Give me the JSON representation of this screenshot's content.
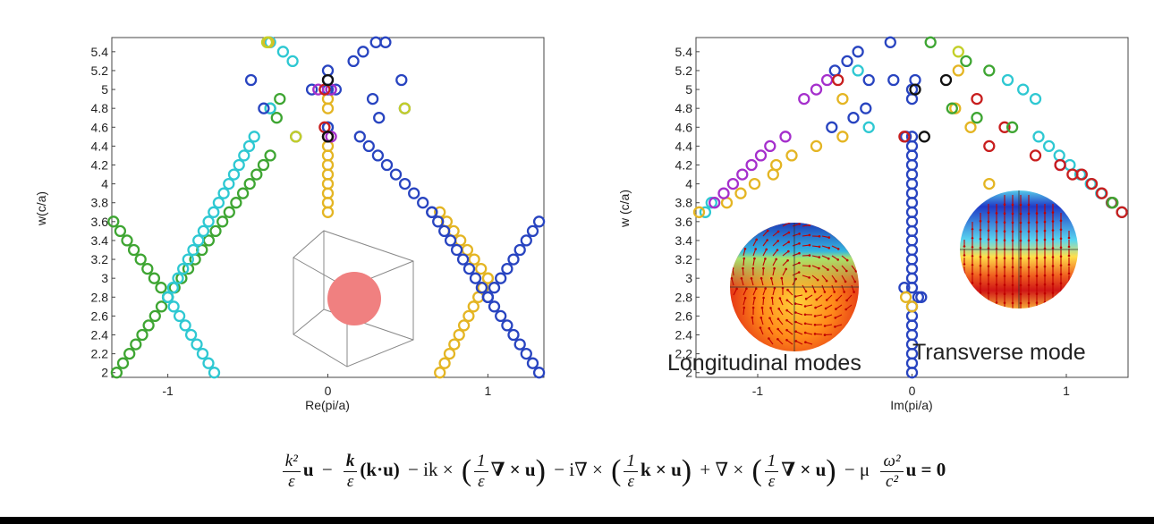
{
  "colors": {
    "green": "#3ea532",
    "cyan": "#2ec8d2",
    "gold": "#e4b523",
    "blue": "#2844c0",
    "purple": "#a52fcc",
    "red": "#c81e1e",
    "black": "#111111",
    "yellowgreen": "#c3cf28",
    "sphere": "#f08080",
    "cube": "#888888"
  },
  "chart_data": [
    {
      "type": "scatter",
      "id": "left",
      "xlabel": "Re(pi/a)",
      "ylabel": "w(c/a)",
      "xlim": [
        -1.35,
        1.35
      ],
      "ylim": [
        1.95,
        5.55
      ],
      "xticks": [
        -1,
        0,
        1
      ],
      "xtick_labels": [
        "-1",
        "0",
        "1"
      ],
      "yticks": [
        2,
        2.2,
        2.4,
        2.6,
        2.8,
        3,
        3.2,
        3.4,
        3.6,
        3.8,
        4,
        4.2,
        4.4,
        4.6,
        4.8,
        5,
        5.2,
        5.4
      ],
      "ytick_labels": [
        "2",
        "2.2",
        "2.4",
        "2.6",
        "2.8",
        "3",
        "3.2",
        "3.4",
        "3.6",
        "3.8",
        "4",
        "4.2",
        "4.4",
        "4.6",
        "4.8",
        "5",
        "5.2",
        "5.4"
      ],
      "series": [
        {
          "name": "green",
          "lines": [
            [
              -1.34,
              3.6,
              -1.0,
              2.8
            ],
            [
              -1.32,
              2.0,
              -1.0,
              2.8
            ],
            [
              -1.0,
              2.8,
              -0.36,
              4.3
            ]
          ],
          "step": 0.1,
          "points": [
            [
              -0.3,
              4.9
            ],
            [
              -0.32,
              4.7
            ],
            [
              -0.36,
              4.8
            ]
          ]
        },
        {
          "name": "cyan",
          "lines": [
            [
              -1.0,
              2.8,
              -0.71,
              2.0
            ],
            [
              -1.0,
              2.8,
              -0.46,
              4.5
            ]
          ],
          "step": 0.1,
          "points": [
            [
              -0.36,
              5.5
            ],
            [
              -0.28,
              5.4
            ],
            [
              -0.22,
              5.3
            ],
            [
              -0.36,
              4.8
            ],
            [
              0.0,
              4.6
            ]
          ]
        },
        {
          "name": "gold",
          "lines": [
            [
              0.0,
              3.7,
              0.0,
              4.5
            ],
            [
              0.7,
              3.7,
              1.0,
              3.0
            ],
            [
              0.7,
              2.0,
              1.0,
              3.0
            ]
          ],
          "step": 0.1,
          "points": [
            [
              -0.37,
              5.5
            ],
            [
              0.0,
              4.8
            ],
            [
              0.0,
              4.9
            ]
          ]
        },
        {
          "name": "blue",
          "lines": [
            [
              0.2,
              4.5,
              0.65,
              3.7
            ],
            [
              0.65,
              3.7,
              1.0,
              2.8
            ],
            [
              1.0,
              2.8,
              1.32,
              2.0
            ],
            [
              1.0,
              2.8,
              1.32,
              3.6
            ]
          ],
          "step": 0.1,
          "points": [
            [
              -0.48,
              5.1
            ],
            [
              -0.4,
              4.8
            ],
            [
              -0.2,
              4.5
            ],
            [
              -0.1,
              5.0
            ],
            [
              0.0,
              5.0
            ],
            [
              0.0,
              5.1
            ],
            [
              0.0,
              5.2
            ],
            [
              0.02,
              5.0
            ],
            [
              0.05,
              5.0
            ],
            [
              0.16,
              5.3
            ],
            [
              0.22,
              5.4
            ],
            [
              0.3,
              5.5
            ],
            [
              0.36,
              5.5
            ],
            [
              0.28,
              4.9
            ],
            [
              0.32,
              4.7
            ],
            [
              0.46,
              5.1
            ],
            [
              0.48,
              4.8
            ],
            [
              0.0,
              4.6
            ],
            [
              0.0,
              4.5
            ]
          ]
        },
        {
          "name": "purple",
          "lines": [],
          "points": [
            [
              -0.06,
              5.0
            ],
            [
              0.02,
              5.0
            ],
            [
              0.02,
              4.5
            ]
          ]
        },
        {
          "name": "red",
          "lines": [],
          "points": [
            [
              -0.02,
              5.0
            ],
            [
              0.0,
              4.5
            ],
            [
              -0.02,
              4.6
            ]
          ]
        },
        {
          "name": "black",
          "lines": [],
          "points": [
            [
              0.0,
              5.1
            ],
            [
              0.0,
              4.5
            ]
          ]
        },
        {
          "name": "yellowgreen",
          "lines": [],
          "points": [
            [
              -0.38,
              5.5
            ],
            [
              -0.2,
              4.5
            ],
            [
              0.48,
              4.8
            ]
          ]
        }
      ]
    },
    {
      "type": "scatter",
      "id": "right",
      "xlabel": "Im(pi/a)",
      "ylabel": "w (c/a)",
      "xlim": [
        -1.4,
        1.4
      ],
      "ylim": [
        1.95,
        5.55
      ],
      "xticks": [
        -1,
        0,
        1
      ],
      "xtick_labels": [
        "-1",
        "0",
        "1"
      ],
      "yticks": [
        2,
        2.2,
        2.4,
        2.6,
        2.8,
        3,
        3.2,
        3.4,
        3.6,
        3.8,
        4,
        4.2,
        4.4,
        4.6,
        4.8,
        5,
        5.2,
        5.4
      ],
      "ytick_labels": [
        "2",
        "2.2",
        "2.4",
        "2.6",
        "2.8",
        "3",
        "3.2",
        "3.4",
        "3.6",
        "3.8",
        "4",
        "4.2",
        "4.4",
        "4.6",
        "4.8",
        "5",
        "5.2",
        "5.4"
      ],
      "annotations": [
        "Longitudinal modes",
        "Transverse mode"
      ],
      "series": [
        {
          "name": "blue",
          "lines": [
            [
              0.0,
              2.0,
              0.0,
              2.7
            ],
            [
              0.0,
              2.9,
              0.0,
              4.5
            ]
          ],
          "step": 0.1,
          "points": [
            [
              -0.04,
              4.5
            ],
            [
              0.04,
              2.8
            ],
            [
              0.06,
              2.8
            ],
            [
              -0.05,
              2.9
            ],
            [
              -0.52,
              4.6
            ],
            [
              -0.38,
              4.7
            ],
            [
              -0.3,
              4.8
            ],
            [
              -0.28,
              5.1
            ],
            [
              -0.12,
              5.1
            ],
            [
              0.0,
              4.9
            ],
            [
              0.0,
              5.0
            ],
            [
              -0.5,
              5.2
            ],
            [
              -0.42,
              5.3
            ],
            [
              -0.35,
              5.4
            ],
            [
              -0.14,
              5.5
            ],
            [
              0.02,
              5.1
            ]
          ]
        },
        {
          "name": "cyan",
          "lines": [
            [
              0.82,
              4.5,
              1.36,
              3.7
            ]
          ],
          "step": 0.1,
          "points": [
            [
              -1.34,
              3.7
            ],
            [
              -1.3,
              3.8
            ],
            [
              -0.28,
              4.6
            ],
            [
              -0.35,
              5.2
            ],
            [
              0.62,
              5.1
            ],
            [
              0.72,
              5.0
            ],
            [
              0.8,
              4.9
            ]
          ]
        },
        {
          "name": "gold",
          "lines": [
            [
              -1.2,
              3.8,
              -1.02,
              4.0
            ]
          ],
          "step": 0.1,
          "points": [
            [
              -1.38,
              3.7
            ],
            [
              -0.9,
              4.1
            ],
            [
              -0.88,
              4.2
            ],
            [
              -0.78,
              4.3
            ],
            [
              -0.62,
              4.4
            ],
            [
              -0.45,
              4.5
            ],
            [
              -0.45,
              4.9
            ],
            [
              0.0,
              2.7
            ],
            [
              -0.04,
              2.8
            ],
            [
              0.3,
              5.2
            ],
            [
              0.28,
              4.8
            ],
            [
              0.38,
              4.6
            ],
            [
              0.5,
              4.0
            ]
          ]
        },
        {
          "name": "purple",
          "lines": [
            [
              -1.28,
              3.8,
              -0.92,
              4.4
            ]
          ],
          "step": 0.1,
          "points": [
            [
              -0.82,
              4.5
            ],
            [
              -0.7,
              4.9
            ],
            [
              -0.62,
              5.0
            ],
            [
              -0.55,
              5.1
            ],
            [
              0.96,
              4.2
            ]
          ]
        },
        {
          "name": "red",
          "lines": [
            [
              1.1,
              4.1,
              1.36,
              3.7
            ]
          ],
          "step": 0.1,
          "points": [
            [
              -0.48,
              5.1
            ],
            [
              -0.05,
              4.5
            ],
            [
              0.42,
              4.9
            ],
            [
              0.5,
              4.4
            ],
            [
              0.6,
              4.6
            ],
            [
              0.8,
              4.3
            ],
            [
              0.96,
              4.2
            ],
            [
              1.04,
              4.1
            ]
          ]
        },
        {
          "name": "green",
          "lines": [],
          "points": [
            [
              0.12,
              5.5
            ],
            [
              0.35,
              5.3
            ],
            [
              0.5,
              5.2
            ],
            [
              0.26,
              4.8
            ],
            [
              0.42,
              4.7
            ],
            [
              0.65,
              4.6
            ],
            [
              1.3,
              3.8
            ]
          ]
        },
        {
          "name": "black",
          "lines": [],
          "points": [
            [
              0.02,
              5.0
            ],
            [
              0.08,
              4.5
            ],
            [
              0.22,
              5.1
            ]
          ]
        },
        {
          "name": "yellowgreen",
          "lines": [],
          "points": [
            [
              0.3,
              5.4
            ]
          ]
        }
      ]
    }
  ],
  "equation": {
    "t1_num": "k²",
    "t1_den": "ε",
    "t1_tail": "u",
    "op1": "−",
    "t2_num": "k",
    "t2_den": "ε",
    "t2_tail": "(k·u)",
    "op2": "− ik ×",
    "t3_open": "(",
    "t3_num": "1",
    "t3_den": "ε",
    "t3_tail": "∇ × u",
    "t3_close": ")",
    "op3": "− i∇ ×",
    "t4_open": "(",
    "t4_num": "1",
    "t4_den": "ε",
    "t4_tail": "k × u",
    "t4_close": ")",
    "op4": "+ ∇ ×",
    "t5_open": "(",
    "t5_num": "1",
    "t5_den": "ε",
    "t5_tail": "∇ × u",
    "t5_close": ")",
    "op5": "− μ",
    "t6_num": "ω²",
    "t6_den": "c²",
    "t6_tail": "u = 0"
  }
}
